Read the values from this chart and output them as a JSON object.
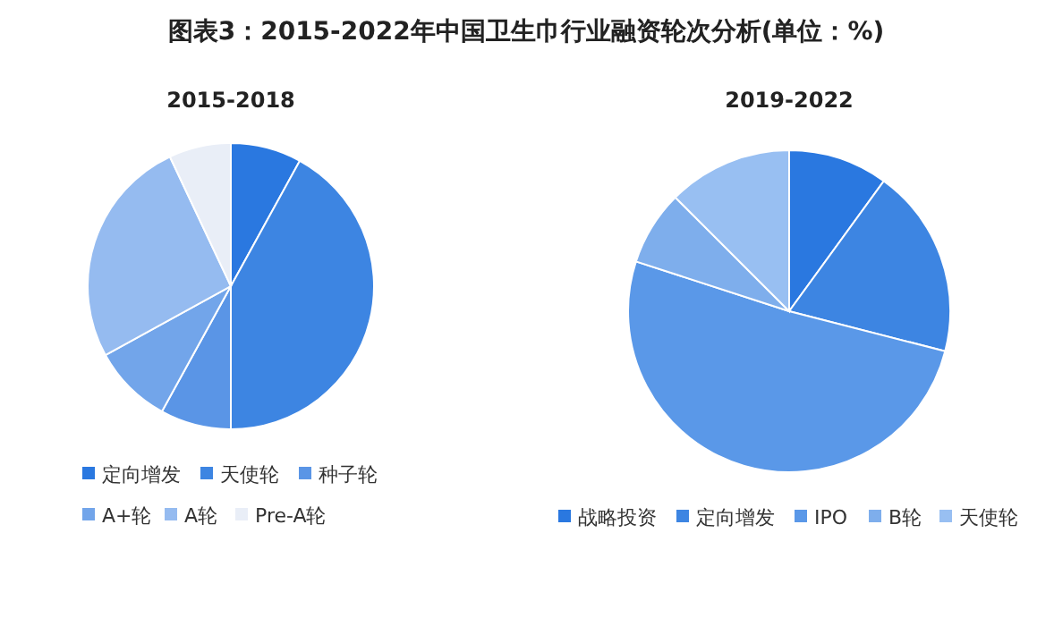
{
  "chart_data": [
    {
      "type": "pie",
      "title": "图表3：2015-2022年中国卫生巾行业融资轮次分析(单位：%)",
      "subtitle": "2015-2018",
      "categories": [
        "定向增发",
        "天使轮",
        "种子轮",
        "A+轮",
        "A轮",
        "Pre-A轮"
      ],
      "values": [
        8,
        42,
        8,
        9,
        26,
        7
      ],
      "colors": [
        "#2a78e0",
        "#3d85e2",
        "#5a95e6",
        "#72a5ea",
        "#95bbf0",
        "#e9eef7"
      ],
      "legend": "bottom"
    },
    {
      "type": "pie",
      "subtitle": "2019-2022",
      "categories": [
        "战略投资",
        "定向增发",
        "IPO",
        "B轮",
        "天使轮"
      ],
      "values": [
        10,
        19,
        51,
        7.5,
        12.5
      ],
      "colors": [
        "#2a78e0",
        "#3d85e2",
        "#5a98e8",
        "#7eaeec",
        "#98bff2"
      ],
      "legend": "bottom"
    }
  ]
}
